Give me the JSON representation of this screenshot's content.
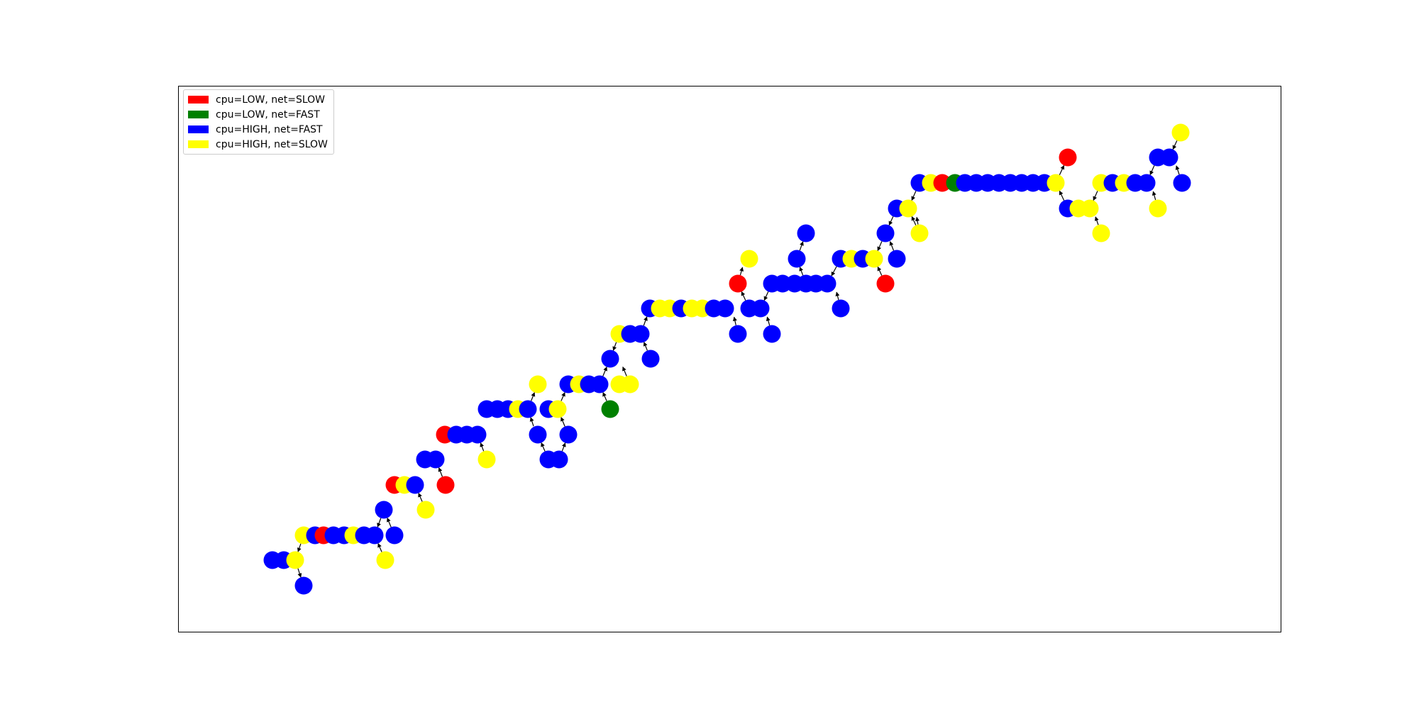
{
  "legend": [
    {
      "label": "cpu=LOW, net=SLOW",
      "color": "#ff0000"
    },
    {
      "label": "cpu=LOW, net=FAST",
      "color": "#008000"
    },
    {
      "label": "cpu=HIGH, net=FAST",
      "color": "#0000ff"
    },
    {
      "label": "cpu=HIGH, net=SLOW",
      "color": "#ffff00"
    }
  ],
  "node_colors": {
    "R": "#ff0000",
    "G": "#008000",
    "B": "#0000ff",
    "Y": "#ffff00"
  }
}
